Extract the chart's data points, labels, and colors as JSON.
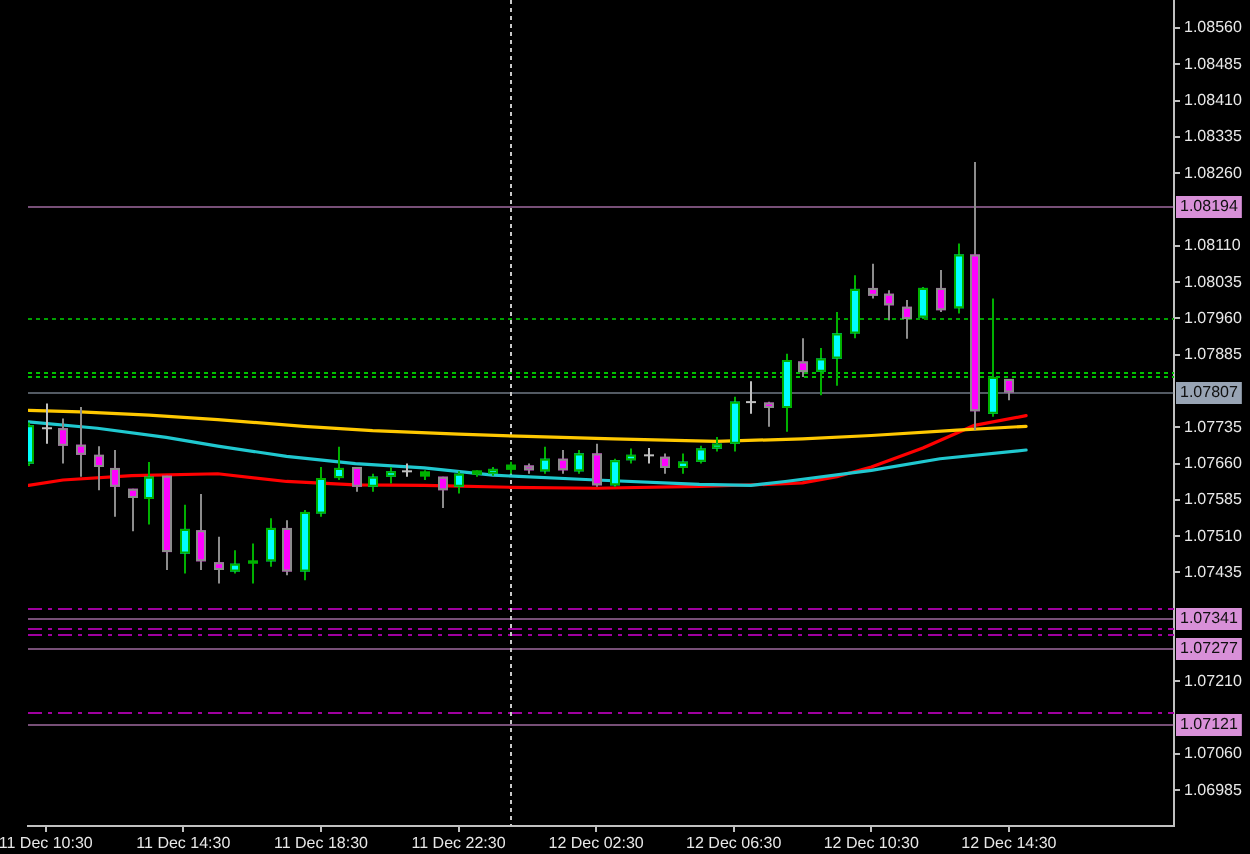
{
  "chart_data": {
    "type": "candlestick",
    "x": [
      "--12-11T10:00",
      "--12-11T10:30",
      "--12-11T11:00",
      "--12-11T11:30",
      "--12-11T12:00",
      "--12-11T12:30",
      "--12-11T13:00",
      "--12-11T13:30",
      "--12-11T14:00",
      "--12-11T14:30",
      "--12-11T15:00",
      "--12-11T15:30",
      "--12-11T16:00",
      "--12-11T16:30",
      "--12-11T17:00",
      "--12-11T17:30",
      "--12-11T18:00",
      "--12-11T18:30",
      "--12-11T19:00",
      "--12-11T19:30",
      "--12-11T20:00",
      "--12-11T20:30",
      "--12-11T21:00",
      "--12-11T21:30",
      "--12-11T22:00",
      "--12-11T22:30",
      "--12-11T23:00",
      "--12-11T23:30",
      "--12-12T00:00",
      "--12-12T00:30",
      "--12-12T01:00",
      "--12-12T01:30",
      "--12-12T02:00",
      "--12-12T02:30",
      "--12-12T03:00",
      "--12-12T03:30",
      "--12-12T04:00",
      "--12-12T04:30",
      "--12-12T05:00",
      "--12-12T05:30",
      "--12-12T06:00",
      "--12-12T06:30",
      "--12-12T07:00",
      "--12-12T07:30",
      "--12-12T08:00",
      "--12-12T08:30",
      "--12-12T09:00",
      "--12-12T09:30",
      "--12-12T10:00",
      "--12-12T10:30",
      "--12-12T11:00",
      "--12-12T11:30",
      "--12-12T12:00",
      "--12-12T12:30",
      "--12-12T13:00",
      "--12-12T13:30",
      "--12-12T14:00",
      "--12-12T14:30"
    ],
    "ohlc": [
      [
        1.0766,
        1.07745,
        1.07655,
        1.07739
      ],
      [
        1.07733,
        1.07784,
        1.07701,
        1.07733
      ],
      [
        1.07733,
        1.07753,
        1.0766,
        1.07697
      ],
      [
        1.07699,
        1.07777,
        1.07633,
        1.07678
      ],
      [
        1.07678,
        1.07696,
        1.07605,
        1.07653
      ],
      [
        1.07651,
        1.07688,
        1.0755,
        1.07612
      ],
      [
        1.07608,
        1.07608,
        1.0752,
        1.07589
      ],
      [
        1.07587,
        1.07663,
        1.07534,
        1.07633
      ],
      [
        1.07635,
        1.07635,
        1.0744,
        1.07477
      ],
      [
        1.07474,
        1.07575,
        1.07433,
        1.07525
      ],
      [
        1.07522,
        1.07597,
        1.0744,
        1.07458
      ],
      [
        1.07456,
        1.07509,
        1.07412,
        1.0744
      ],
      [
        1.07437,
        1.07481,
        1.07433,
        1.07453
      ],
      [
        1.07455,
        1.07495,
        1.07412,
        1.07458
      ],
      [
        1.07458,
        1.07547,
        1.07447,
        1.07527
      ],
      [
        1.07527,
        1.07543,
        1.07429,
        1.07437
      ],
      [
        1.07437,
        1.07564,
        1.07419,
        1.0756
      ],
      [
        1.07557,
        1.07653,
        1.0755,
        1.0763
      ],
      [
        1.0763,
        1.07695,
        1.07626,
        1.07651
      ],
      [
        1.07653,
        1.07653,
        1.07602,
        1.07612
      ],
      [
        1.07612,
        1.07639,
        1.07602,
        1.07633
      ],
      [
        1.07633,
        1.07653,
        1.07619,
        1.07644
      ],
      [
        1.07644,
        1.0766,
        1.07633,
        1.07644
      ],
      [
        1.07635,
        1.07646,
        1.07626,
        1.07642
      ],
      [
        1.07633,
        1.07633,
        1.07568,
        1.07605
      ],
      [
        1.07612,
        1.07644,
        1.07598,
        1.07639
      ],
      [
        1.07639,
        1.07646,
        1.07633,
        1.07644
      ],
      [
        1.07639,
        1.07653,
        1.07635,
        1.07649
      ],
      [
        1.07649,
        1.07664,
        1.07639,
        1.07656
      ],
      [
        1.07656,
        1.0766,
        1.07639,
        1.07646
      ],
      [
        1.07644,
        1.07695,
        1.07639,
        1.0767
      ],
      [
        1.0767,
        1.07688,
        1.07639,
        1.07646
      ],
      [
        1.07644,
        1.07688,
        1.07639,
        1.07681
      ],
      [
        1.07681,
        1.07701,
        1.07612,
        1.07615
      ],
      [
        1.07615,
        1.0767,
        1.07612,
        1.07667
      ],
      [
        1.07667,
        1.07691,
        1.0766,
        1.07678
      ],
      [
        1.07677,
        1.07692,
        1.0766,
        1.07677
      ],
      [
        1.07674,
        1.07681,
        1.07639,
        1.07651
      ],
      [
        1.07651,
        1.07681,
        1.07639,
        1.07664
      ],
      [
        1.07664,
        1.07697,
        1.0766,
        1.07691
      ],
      [
        1.07691,
        1.07715,
        1.07685,
        1.07701
      ],
      [
        1.07701,
        1.07798,
        1.07685,
        1.07788
      ],
      [
        1.07787,
        1.0783,
        1.07763,
        1.07787
      ],
      [
        1.07786,
        1.07788,
        1.07736,
        1.07775
      ],
      [
        1.07775,
        1.07887,
        1.07726,
        1.07874
      ],
      [
        1.07871,
        1.07919,
        1.07839,
        1.07849
      ],
      [
        1.0785,
        1.07899,
        1.07801,
        1.07877
      ],
      [
        1.07877,
        1.07973,
        1.07821,
        1.07929
      ],
      [
        1.07929,
        1.08049,
        1.07919,
        1.08021
      ],
      [
        1.08023,
        1.08073,
        1.08001,
        1.08007
      ],
      [
        1.08011,
        1.08018,
        1.07956,
        1.07987
      ],
      [
        1.07984,
        1.07998,
        1.07918,
        1.07959
      ],
      [
        1.07962,
        1.08025,
        1.07959,
        1.08023
      ],
      [
        1.08023,
        1.0806,
        1.07973,
        1.07977
      ],
      [
        1.07981,
        1.08115,
        1.0797,
        1.08092
      ],
      [
        1.08092,
        1.08283,
        1.07729,
        1.07768
      ],
      [
        1.07763,
        1.08001,
        1.07757,
        1.07839
      ],
      [
        1.07835,
        1.07835,
        1.07791,
        1.07807
      ]
    ],
    "colors": [
      "#00ffff",
      "#c0c0c0",
      "#ff00ff",
      "#ff00ff",
      "#ff00ff",
      "#ff00ff",
      "#ff00ff",
      "#00ffff",
      "#ff00ff",
      "#00ffff",
      "#ff00ff",
      "#ff00ff",
      "#00ffff",
      "#00b000",
      "#00ffff",
      "#ff00ff",
      "#00ffff",
      "#00ffff",
      "#00ffff",
      "#ff00ff",
      "#00ffff",
      "#00ffff",
      "#c0c0c0",
      "#00b000",
      "#ff00ff",
      "#00ffff",
      "#00b000",
      "#00ffff",
      "#00b000",
      "#ff00ff",
      "#00ffff",
      "#ff00ff",
      "#00ffff",
      "#ff00ff",
      "#00ffff",
      "#00ffff",
      "#c0c0c0",
      "#ff00ff",
      "#00ffff",
      "#00ffff",
      "#00ffff",
      "#00ffff",
      "#c0c0c0",
      "#ff00ff",
      "#00ffff",
      "#ff00ff",
      "#00ffff",
      "#00ffff",
      "#00ffff",
      "#ff00ff",
      "#ff00ff",
      "#ff00ff",
      "#00ffff",
      "#ff00ff",
      "#00ffff",
      "#ff00ff",
      "#00ffff",
      "#ff00ff"
    ],
    "series": [
      {
        "type": "line",
        "color": "#ffc800",
        "x": [
          "--12-11T10:00",
          "--12-11T11:30",
          "--12-11T13:30",
          "--12-11T15:30",
          "--12-11T18:00",
          "--12-11T20:00",
          "--12-11T22:30",
          "--12-12T00:30",
          "--12-12T03:00",
          "--12-12T06:00",
          "--12-12T08:30",
          "--12-12T10:30",
          "--12-12T13:00",
          "--12-12T15:00"
        ],
        "values": [
          1.0777,
          1.07767,
          1.0776,
          1.07751,
          1.07737,
          1.07728,
          1.07721,
          1.07716,
          1.07711,
          1.07706,
          1.07711,
          1.07718,
          1.07729,
          1.07737
        ]
      },
      {
        "type": "line",
        "color": "#20c8d0",
        "x": [
          "--12-11T10:00",
          "--12-11T12:00",
          "--12-11T14:00",
          "--12-11T15:30",
          "--12-11T17:30",
          "--12-11T19:30",
          "--12-11T21:30",
          "--12-11T23:30",
          "--12-12T02:30",
          "--12-12T05:30",
          "--12-12T07:00",
          "--12-12T08:00",
          "--12-12T10:30",
          "--12-12T12:30",
          "--12-12T15:00"
        ],
        "values": [
          1.07746,
          1.07733,
          1.07714,
          1.07696,
          1.07675,
          1.0766,
          1.07651,
          1.07636,
          1.07626,
          1.07617,
          1.07615,
          1.07623,
          1.07646,
          1.0767,
          1.07688
        ]
      },
      {
        "type": "line",
        "color": "#ff0000",
        "x": [
          "--12-11T10:00",
          "--12-11T11:00",
          "--12-11T13:00",
          "--12-11T15:30",
          "--12-11T17:30",
          "--12-11T19:30",
          "--12-11T21:30",
          "--12-12T00:00",
          "--12-12T02:30",
          "--12-12T05:30",
          "--12-12T07:30",
          "--12-12T08:30",
          "--12-12T09:30",
          "--12-12T10:30",
          "--12-12T12:00",
          "--12-12T13:30",
          "--12-12T15:00"
        ],
        "values": [
          1.07615,
          1.07626,
          1.07635,
          1.07639,
          1.07623,
          1.07616,
          1.07615,
          1.07611,
          1.07609,
          1.07613,
          1.07617,
          1.0762,
          1.07633,
          1.07653,
          1.07692,
          1.07739,
          1.07759
        ]
      }
    ],
    "xlim": [
      "--12-11T09:59",
      "--12-12T19:18"
    ],
    "xticks": [
      {
        "value": "--12-11T10:30",
        "label": "11 Dec 10:30"
      },
      {
        "value": "--12-11T14:30",
        "label": "11 Dec 14:30"
      },
      {
        "value": "--12-11T18:30",
        "label": "11 Dec 18:30"
      },
      {
        "value": "--12-11T22:30",
        "label": "11 Dec 22:30"
      },
      {
        "value": "--12-12T02:30",
        "label": "12 Dec 02:30"
      },
      {
        "value": "--12-12T06:30",
        "label": "12 Dec 06:30"
      },
      {
        "value": "--12-12T10:30",
        "label": "12 Dec 10:30"
      },
      {
        "value": "--12-12T14:30",
        "label": "12 Dec 14:30"
      }
    ],
    "ylim": [
      1.06911,
      1.08618
    ],
    "yticks": [
      {
        "value": 1.0856,
        "label": "1.08560"
      },
      {
        "value": 1.08485,
        "label": "1.08485"
      },
      {
        "value": 1.0841,
        "label": "1.08410"
      },
      {
        "value": 1.08335,
        "label": "1.08335"
      },
      {
        "value": 1.0826,
        "label": "1.08260"
      },
      {
        "value": 1.0811,
        "label": "1.08110"
      },
      {
        "value": 1.08035,
        "label": "1.08035"
      },
      {
        "value": 1.0796,
        "label": "1.07960"
      },
      {
        "value": 1.07885,
        "label": "1.07885"
      },
      {
        "value": 1.07735,
        "label": "1.07735"
      },
      {
        "value": 1.0766,
        "label": "1.07660"
      },
      {
        "value": 1.07585,
        "label": "1.07585"
      },
      {
        "value": 1.0751,
        "label": "1.07510"
      },
      {
        "value": 1.07435,
        "label": "1.07435"
      },
      {
        "value": 1.0721,
        "label": "1.07210"
      },
      {
        "value": 1.0706,
        "label": "1.07060"
      },
      {
        "value": 1.06985,
        "label": "1.06985"
      }
    ],
    "ref_lines": [
      {
        "axis": "y",
        "value": 1.08194,
        "label": "1.08194",
        "color": "#d890d8",
        "line_style": "solid"
      },
      {
        "axis": "y",
        "value": 1.0796,
        "color": "#00a000",
        "line_style": "dotted"
      },
      {
        "axis": "y",
        "value": 1.07851,
        "color": "#00c000",
        "line_style": "dotted"
      },
      {
        "axis": "y",
        "value": 1.07839,
        "color": "#00c000",
        "line_style": "dotted"
      },
      {
        "axis": "y",
        "value": 1.07807,
        "label": "1.07807",
        "color": "#98a4b4",
        "line_style": "solid"
      },
      {
        "axis": "y",
        "value": 1.0736,
        "color": "#a000a0",
        "line_style": "dashed"
      },
      {
        "axis": "y",
        "value": 1.07341,
        "label": "1.07341",
        "color": "#d890d8",
        "line_style": "solid"
      },
      {
        "axis": "y",
        "value": 1.07319,
        "color": "#a000a0",
        "line_style": "dashed"
      },
      {
        "axis": "y",
        "value": 1.07308,
        "color": "#a000a0",
        "line_style": "dashed"
      },
      {
        "axis": "y",
        "value": 1.07277,
        "label": "1.07277",
        "color": "#d890d8",
        "line_style": "solid"
      },
      {
        "axis": "y",
        "value": 1.07146,
        "color": "#a000a0",
        "line_style": "dashed"
      },
      {
        "axis": "y",
        "value": 1.07121,
        "label": "1.07121",
        "color": "#d890d8",
        "line_style": "solid"
      },
      {
        "axis": "x",
        "value": "--12-12T00:00",
        "color": "#c8c8c8",
        "line_style": "dotted"
      }
    ]
  }
}
